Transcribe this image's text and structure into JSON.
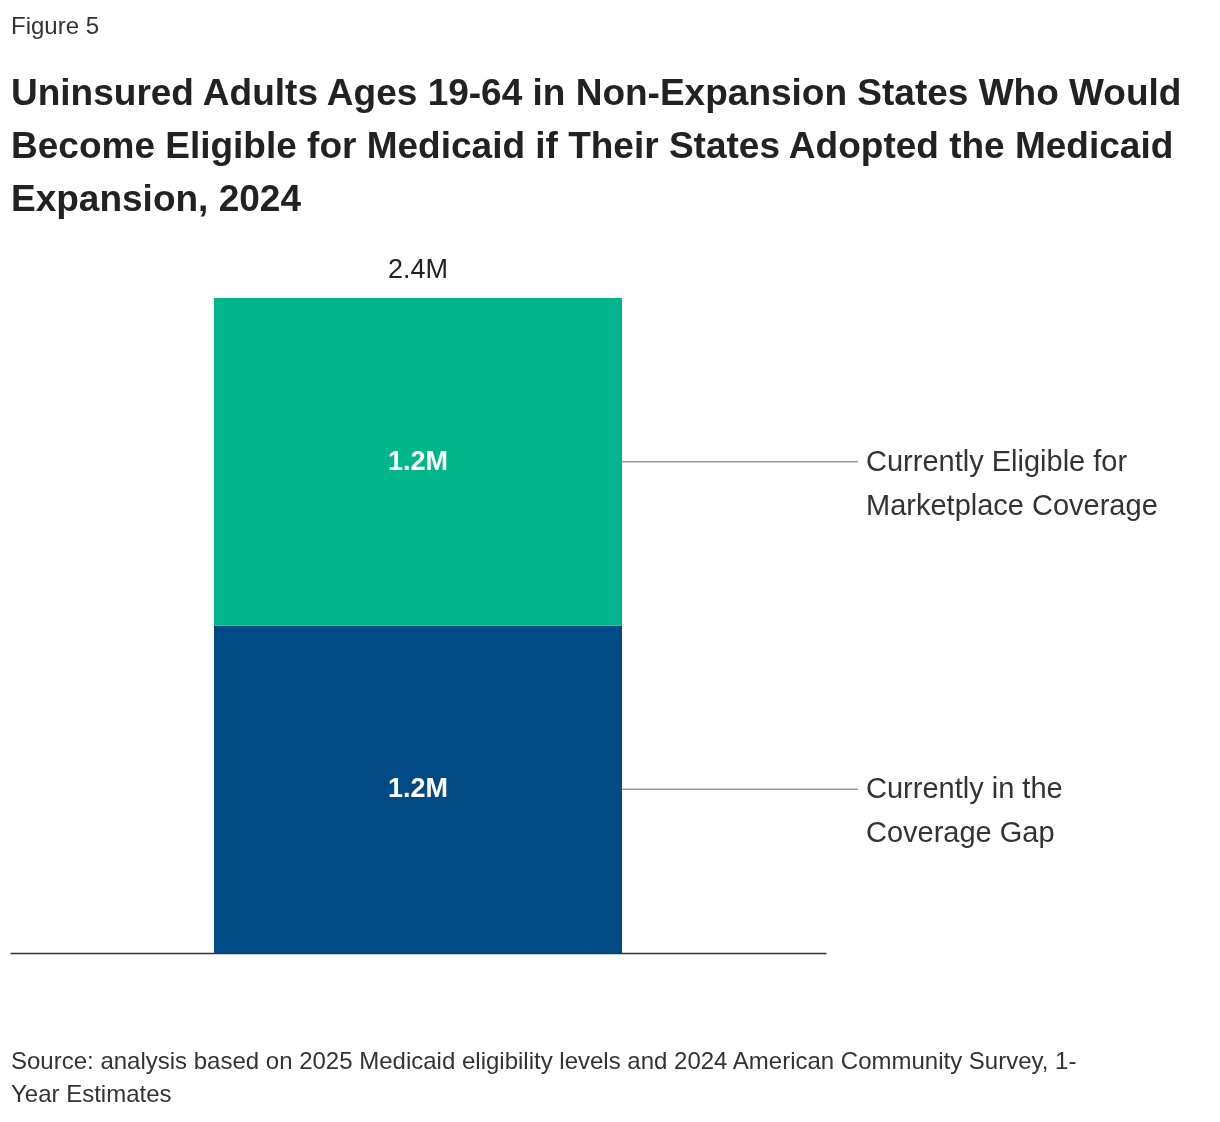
{
  "chart_data": {
    "type": "bar",
    "subtitle": "Figure 5",
    "title": "Uninsured Adults Ages 19-64 in Non-Expansion States Who Would Become Eligible for Medicaid if Their States Adopted the Medicaid Expansion, 2024",
    "categories": [
      null
    ],
    "stacked": true,
    "series": [
      {
        "name": "Currently in the Coverage Gap",
        "color": "#004a86",
        "values": [
          1.2
        ],
        "value_labels": [
          "1.2M"
        ]
      },
      {
        "name": "Currently Eligible for Marketplace Coverage",
        "color": "#00b68a",
        "values": [
          1.2
        ],
        "value_labels": [
          "1.2M"
        ]
      }
    ],
    "totals": [
      "2.4M"
    ],
    "annotations": [
      "Source: analysis based on 2025 Medicaid eligibility levels and 2024 American Community Survey, 1-Year Estimates"
    ]
  }
}
